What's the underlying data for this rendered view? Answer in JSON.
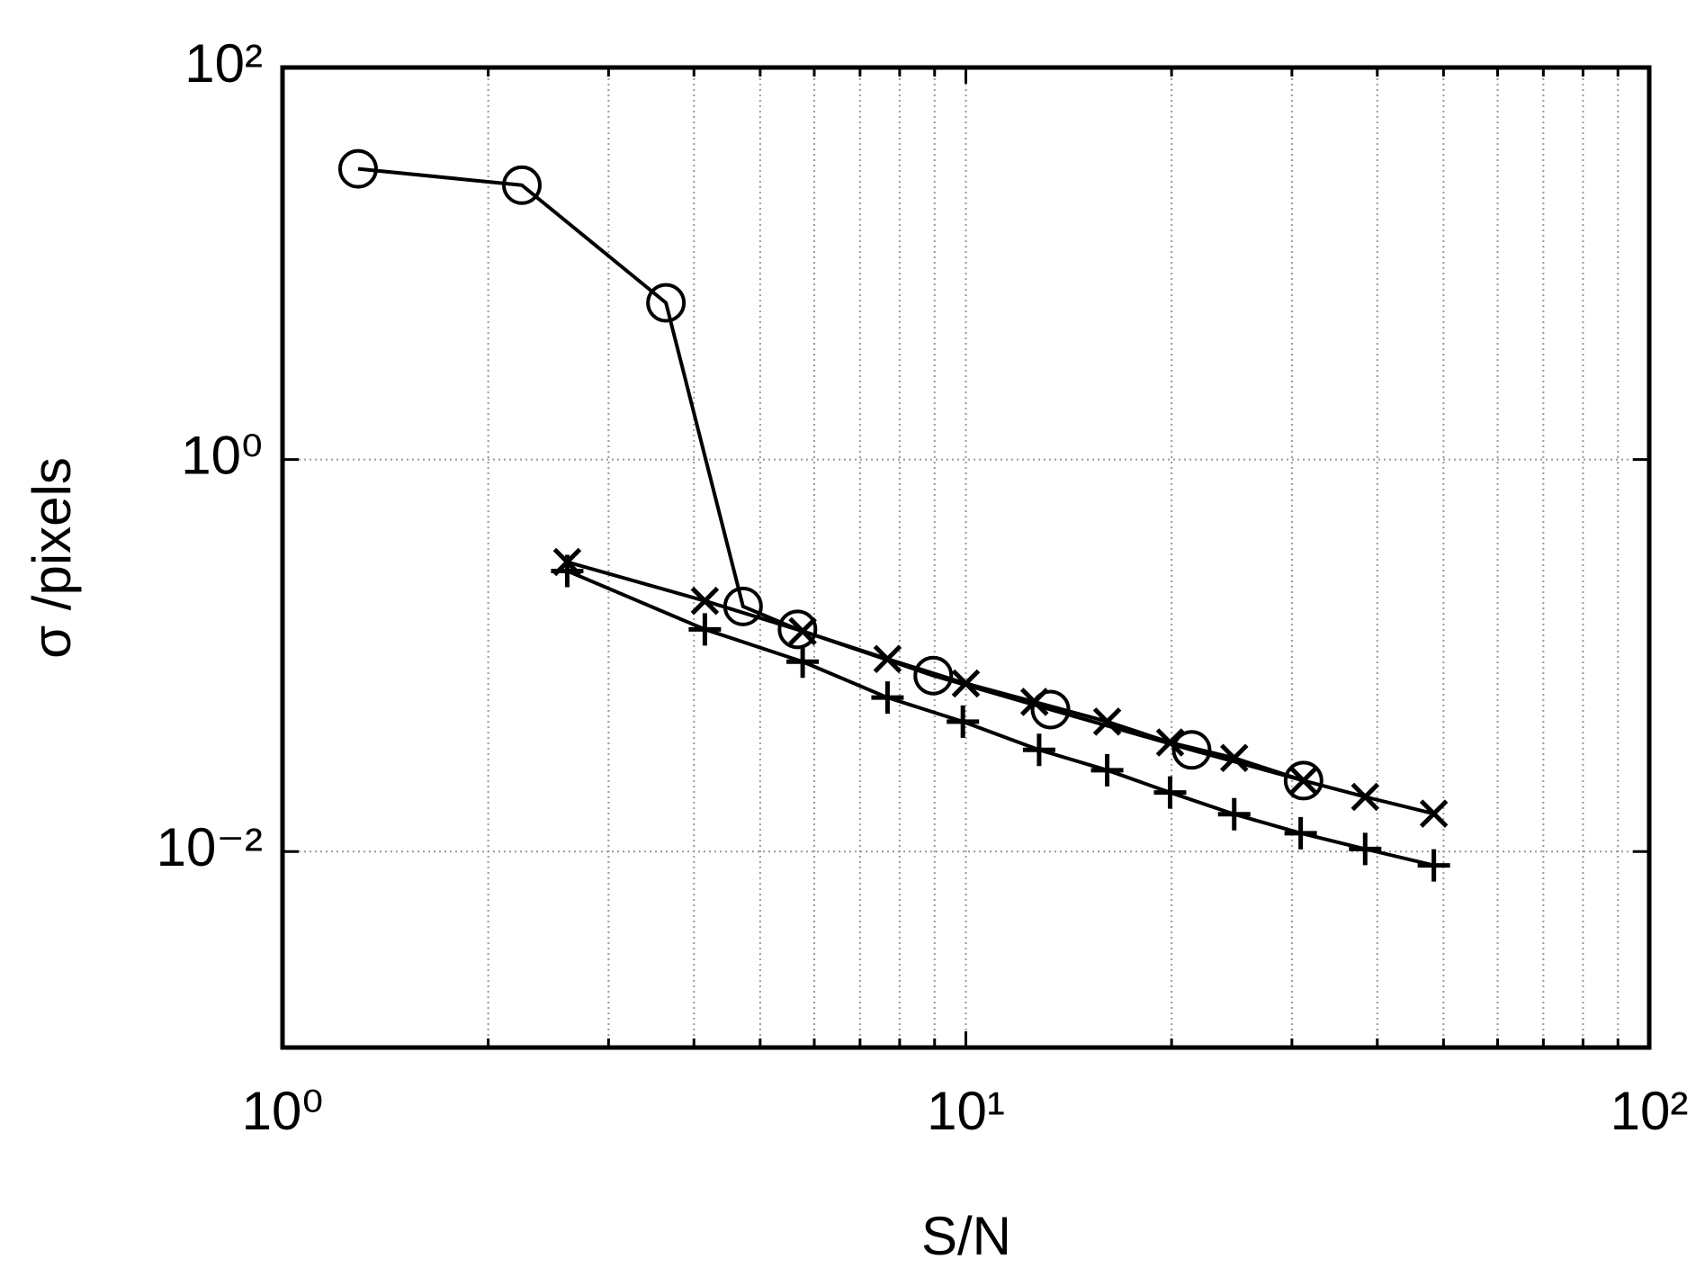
{
  "chart_data": {
    "type": "line",
    "x_label": "S/N",
    "y_label": "σ /pixels",
    "xscale": "log",
    "yscale": "log",
    "grid": true,
    "xlim": [
      1,
      100
    ],
    "ylim": [
      0.001,
      100
    ],
    "xticks": [
      {
        "value": 1,
        "label": "10⁰"
      },
      {
        "value": 10,
        "label": "10¹"
      },
      {
        "value": 100,
        "label": "10²"
      }
    ],
    "xminorticks": [
      2,
      3,
      4,
      5,
      6,
      7,
      8,
      9,
      20,
      30,
      40,
      50,
      60,
      70,
      80,
      90
    ],
    "yticks": [
      {
        "value": 0.01,
        "label": "10⁻²"
      },
      {
        "value": 1,
        "label": "10⁰"
      },
      {
        "value": 100,
        "label": "10²"
      }
    ],
    "series": [
      {
        "marker": "o",
        "color": "#000000",
        "x": [
          1.29,
          2.24,
          3.64,
          4.72,
          5.67,
          8.96,
          13.3,
          21.4,
          31.2
        ],
        "values": [
          30.4,
          25.1,
          6.3,
          0.178,
          0.136,
          0.079,
          0.053,
          0.033,
          0.023
        ]
      },
      {
        "marker": "x",
        "color": "#000000",
        "x": [
          2.61,
          4.15,
          5.77,
          7.68,
          10,
          12.6,
          16.1,
          19.9,
          24.7,
          31.2,
          38.4,
          48.4
        ],
        "values": [
          0.3,
          0.19,
          0.133,
          0.096,
          0.072,
          0.058,
          0.046,
          0.036,
          0.03,
          0.023,
          0.019,
          0.0156
        ]
      },
      {
        "marker": "+",
        "color": "#000000",
        "x": [
          2.61,
          4.15,
          5.77,
          7.68,
          9.9,
          12.8,
          16.1,
          19.9,
          24.7,
          30.9,
          38.4,
          48.4
        ],
        "values": [
          0.27,
          0.136,
          0.093,
          0.061,
          0.046,
          0.033,
          0.026,
          0.02,
          0.0155,
          0.0124,
          0.0103,
          0.0085
        ]
      }
    ]
  }
}
